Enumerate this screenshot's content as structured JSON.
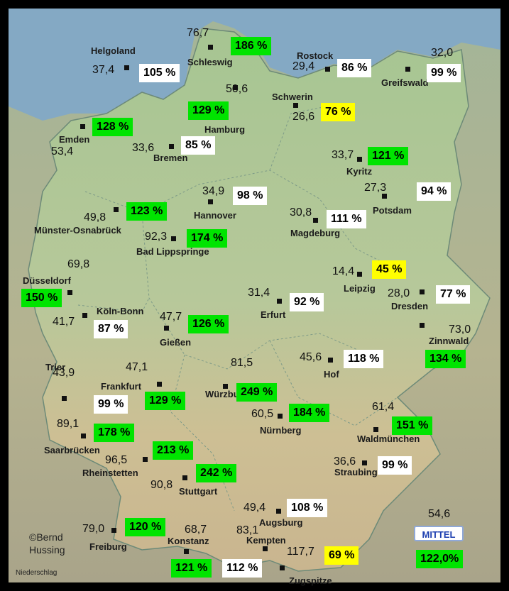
{
  "stations": [
    {
      "name": "Helgoland",
      "value": "37,4",
      "pct": "105 %",
      "cat": "white"
    },
    {
      "name": "Schleswig",
      "value": "76,7",
      "pct": "186 %",
      "cat": "green"
    },
    {
      "name": "Rostock",
      "value": "29,4",
      "pct": "86 %",
      "cat": "white"
    },
    {
      "name": "Greifswald",
      "value": "32,0",
      "pct": "99 %",
      "cat": "white"
    },
    {
      "name": "Hamburg",
      "value": "50,6",
      "pct": "129 %",
      "cat": "green"
    },
    {
      "name": "Schwerin",
      "value": "26,6",
      "pct": "76 %",
      "cat": "yellow"
    },
    {
      "name": "Emden",
      "value": "53,4",
      "pct": "128 %",
      "cat": "green"
    },
    {
      "name": "Bremen",
      "value": "33,6",
      "pct": "85 %",
      "cat": "white"
    },
    {
      "name": "Kyritz",
      "value": "33,7",
      "pct": "121 %",
      "cat": "green"
    },
    {
      "name": "Hannover",
      "value": "34,9",
      "pct": "98 %",
      "cat": "white"
    },
    {
      "name": "Potsdam",
      "value": "27,3",
      "pct": "94 %",
      "cat": "white"
    },
    {
      "name": "Münster-Osnabrück",
      "value": "49,8",
      "pct": "123 %",
      "cat": "green"
    },
    {
      "name": "Magdeburg",
      "value": "30,8",
      "pct": "111 %",
      "cat": "white"
    },
    {
      "name": "Bad Lippspringe",
      "value": "92,3",
      "pct": "174 %",
      "cat": "green"
    },
    {
      "name": "Düsseldorf",
      "value": "69,8",
      "pct": "150 %",
      "cat": "green"
    },
    {
      "name": "Leipzig",
      "value": "14,4",
      "pct": "45 %",
      "cat": "yellow"
    },
    {
      "name": "Erfurt",
      "value": "31,4",
      "pct": "92 %",
      "cat": "white"
    },
    {
      "name": "Dresden",
      "value": "28,0",
      "pct": "77 %",
      "cat": "white"
    },
    {
      "name": "Köln-Bonn",
      "value": "41,7",
      "pct": "87 %",
      "cat": "white"
    },
    {
      "name": "Gießen",
      "value": "47,7",
      "pct": "126 %",
      "cat": "green"
    },
    {
      "name": "Zinnwald",
      "value": "73,0",
      "pct": "134 %",
      "cat": "green"
    },
    {
      "name": "Hof",
      "value": "45,6",
      "pct": "118 %",
      "cat": "white"
    },
    {
      "name": "Würzburg",
      "value": "81,5",
      "pct": "249 %",
      "cat": "green"
    },
    {
      "name": "Trier",
      "value": "43,9",
      "pct": "99 %",
      "cat": "white"
    },
    {
      "name": "Frankfurt",
      "value": "47,1",
      "pct": "129 %",
      "cat": "green"
    },
    {
      "name": "Nürnberg",
      "value": "60,5",
      "pct": "184 %",
      "cat": "green"
    },
    {
      "name": "Waldmünchen",
      "value": "61,4",
      "pct": "151 %",
      "cat": "green"
    },
    {
      "name": "Saarbrücken",
      "value": "89,1",
      "pct": "178 %",
      "cat": "green"
    },
    {
      "name": "Rheinstetten",
      "value": "96,5",
      "pct": "213 %",
      "cat": "green"
    },
    {
      "name": "Straubing",
      "value": "36,6",
      "pct": "99 %",
      "cat": "white"
    },
    {
      "name": "Stuttgart",
      "value": "90,8",
      "pct": "242 %",
      "cat": "green"
    },
    {
      "name": "Augsburg",
      "value": "49,4",
      "pct": "108 %",
      "cat": "white"
    },
    {
      "name": "Freiburg",
      "value": "79,0",
      "pct": "120 %",
      "cat": "green"
    },
    {
      "name": "Konstanz",
      "value": "68,7",
      "pct": "121 %",
      "cat": "green"
    },
    {
      "name": "Kempten",
      "value": "83,1",
      "pct": "112 %",
      "cat": "white"
    },
    {
      "name": "Zugspitze",
      "value": "117,7",
      "pct": "69 %",
      "cat": "yellow"
    }
  ],
  "average": {
    "label": "MITTEL",
    "value": "54,6",
    "pct": "122,0%"
  },
  "copyright": {
    "line1": "©Bernd",
    "line2": "Hussing"
  },
  "caption": "Niederschlag",
  "colors": {
    "green": "#00e400",
    "white": "#ffffff",
    "yellow": "#ffff00",
    "land": "#9fbf8f",
    "sea": "#7fa7c9"
  }
}
